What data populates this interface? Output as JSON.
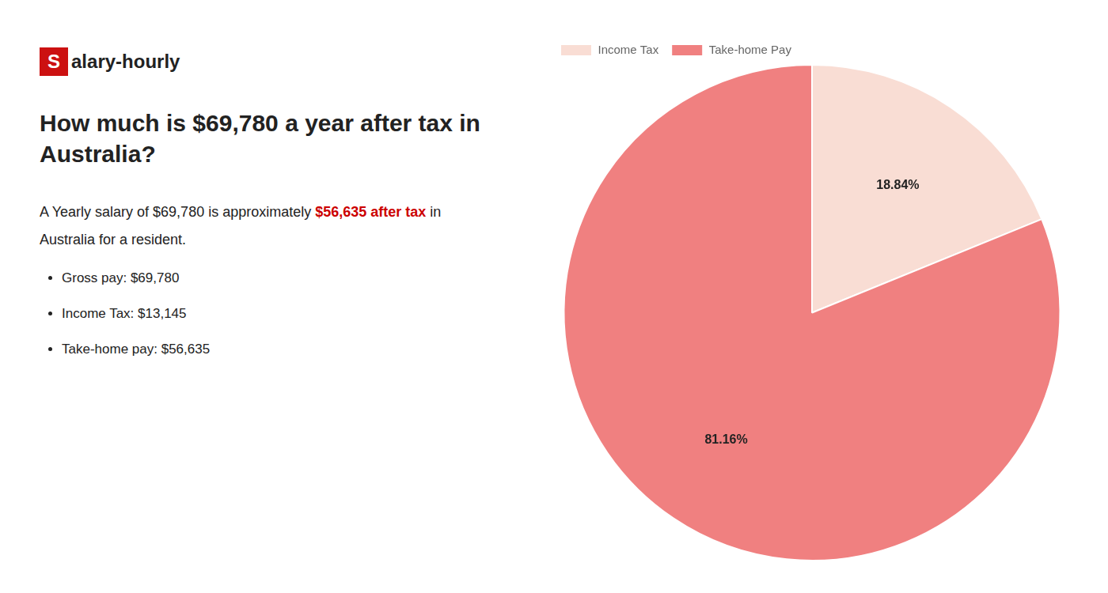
{
  "chart_data": {
    "type": "pie",
    "title": [
      "How much is $69,780 a year after tax in",
      "Australia?"
    ],
    "categories": [
      "Income Tax",
      "Take-home Pay"
    ],
    "values": [
      18.84,
      81.16
    ],
    "value_labels": [
      "18.84%",
      "81.16%"
    ],
    "colors": [
      "#f9ddd4",
      "#f08080"
    ],
    "data_labels": true,
    "legend": "upper left",
    "annotations": [
      {
        "marker": "logo",
        "text": [
          {
            "text": "S",
            "color": "#cc1111"
          },
          {
            "text": "alary-hourly"
          }
        ]
      },
      {
        "text": [
          {
            "text": "A Yearly salary of $69,780 is approximately "
          },
          {
            "text": "$56,635 after tax",
            "color": "#cc0000"
          },
          {
            "text": " in"
          }
        ]
      },
      {
        "text": [
          {
            "text": "Australia for a resident."
          }
        ]
      },
      {
        "marker": "bullet",
        "text": [
          {
            "text": "Gross pay: $69,780"
          }
        ]
      },
      {
        "marker": "bullet",
        "text": [
          {
            "text": "Income Tax: $13,145"
          }
        ]
      },
      {
        "marker": "bullet",
        "text": [
          {
            "text": "Take-home pay: $56,635"
          }
        ]
      }
    ]
  }
}
